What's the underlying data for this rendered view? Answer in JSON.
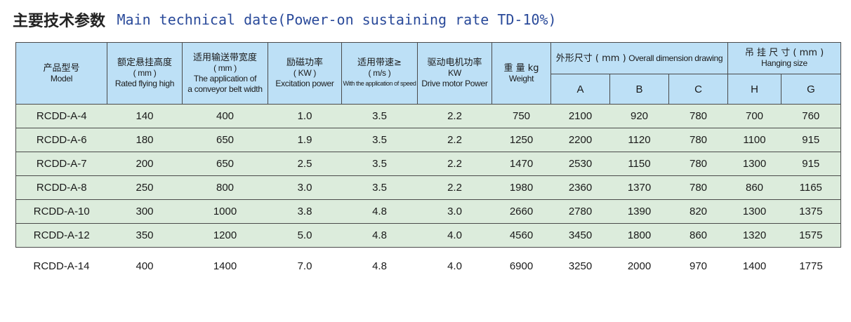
{
  "title": {
    "cn": "主要技术参数",
    "en": "Main technical date(Power-on sustaining rate TD-10%)"
  },
  "headers": {
    "model": {
      "cn": "产品型号",
      "en": "Model"
    },
    "height": {
      "cn": "额定悬挂高度",
      "unit": "( mm )",
      "en": "Rated flying high"
    },
    "width": {
      "cn": "适用输送带宽度",
      "unit": "( mm )",
      "en1": "The application of",
      "en2": "a conveyor belt width"
    },
    "power": {
      "cn": "励磁功率",
      "unit": "( KW )",
      "en": "Excitation power"
    },
    "speed": {
      "cn": "适用带速≥",
      "unit": "( m/s )",
      "en": "With the application of speed"
    },
    "motor": {
      "cn": "驱动电机功率",
      "unit": "KW",
      "en": "Drive motor Power"
    },
    "weight": {
      "cn": "重 量 kg",
      "en": "Weight"
    },
    "dimension": {
      "cn": "外形尺寸 ( mm )",
      "en": "Overall dimension drawing",
      "cols": [
        "A",
        "B",
        "C"
      ]
    },
    "hanging": {
      "cn": "吊 挂 尺 寸 ( mm )",
      "en": "Hanging size",
      "cols": [
        "H",
        "G"
      ]
    }
  },
  "rows": [
    [
      "RCDD-A-4",
      "140",
      "400",
      "1.0",
      "3.5",
      "2.2",
      "750",
      "2100",
      "920",
      "780",
      "700",
      "760"
    ],
    [
      "RCDD-A-6",
      "180",
      "650",
      "1.9",
      "3.5",
      "2.2",
      "1250",
      "2200",
      "1120",
      "780",
      "1100",
      "915"
    ],
    [
      "RCDD-A-7",
      "200",
      "650",
      "2.5",
      "3.5",
      "2.2",
      "1470",
      "2530",
      "1150",
      "780",
      "1300",
      "915"
    ],
    [
      "RCDD-A-8",
      "250",
      "800",
      "3.0",
      "3.5",
      "2.2",
      "1980",
      "2360",
      "1370",
      "780",
      "860",
      "1165"
    ],
    [
      "RCDD-A-10",
      "300",
      "1000",
      "3.8",
      "4.8",
      "3.0",
      "2660",
      "2780",
      "1390",
      "820",
      "1300",
      "1375"
    ],
    [
      "RCDD-A-12",
      "350",
      "1200",
      "5.0",
      "4.8",
      "4.0",
      "4560",
      "3450",
      "1800",
      "860",
      "1320",
      "1575"
    ],
    [
      "RCDD-A-14",
      "400",
      "1400",
      "7.0",
      "4.8",
      "4.0",
      "6900",
      "3250",
      "2000",
      "970",
      "1400",
      "1775"
    ]
  ]
}
